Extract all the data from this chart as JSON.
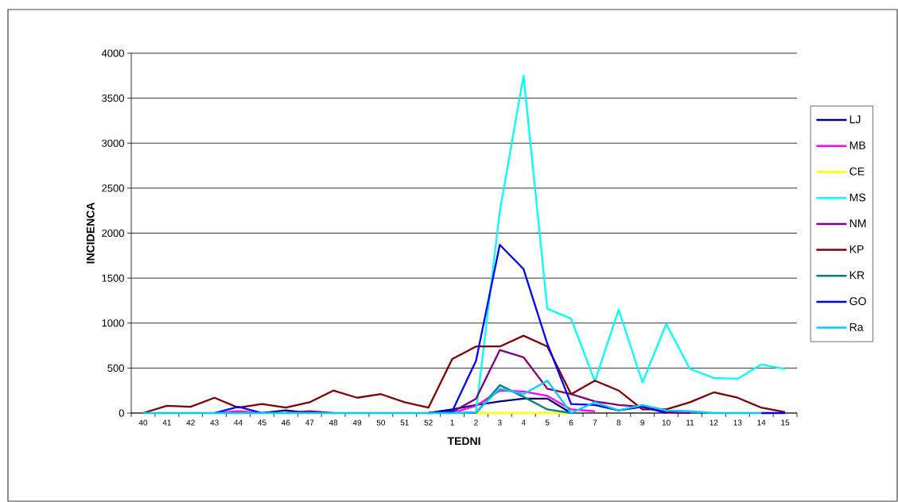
{
  "chart_data": {
    "type": "line",
    "xlabel": "TEDNI",
    "ylabel": "INCIDENCA",
    "categories": [
      "40",
      "41",
      "42",
      "43",
      "44",
      "45",
      "46",
      "47",
      "48",
      "49",
      "50",
      "51",
      "52",
      "1",
      "2",
      "3",
      "4",
      "5",
      "6",
      "7",
      "8",
      "9",
      "10",
      "11",
      "12",
      "13",
      "14",
      "15"
    ],
    "ylim": [
      0,
      4000
    ],
    "yticks": [
      0,
      500,
      1000,
      1500,
      2000,
      2500,
      3000,
      3500,
      4000
    ],
    "grid": "y",
    "legend": "right",
    "series": [
      {
        "name": "LJ",
        "color": "#000080",
        "values": [
          null,
          null,
          null,
          null,
          null,
          0,
          30,
          0,
          null,
          null,
          null,
          null,
          0,
          40,
          90,
          130,
          160,
          160,
          0,
          null,
          null,
          null,
          null,
          null,
          null,
          null,
          null,
          null
        ]
      },
      {
        "name": "MB",
        "color": "#ff00ff",
        "values": [
          null,
          null,
          null,
          0,
          20,
          0,
          null,
          null,
          null,
          null,
          null,
          null,
          null,
          0,
          80,
          250,
          240,
          190,
          40,
          20,
          null,
          null,
          null,
          null,
          null,
          null,
          null,
          null
        ]
      },
      {
        "name": "CE",
        "color": "#ffff00",
        "values": [
          null,
          null,
          null,
          null,
          null,
          null,
          null,
          null,
          null,
          null,
          null,
          null,
          null,
          null,
          0,
          0,
          0,
          0,
          0,
          null,
          null,
          null,
          null,
          null,
          null,
          null,
          null,
          null
        ]
      },
      {
        "name": "MS",
        "color": "#00ffff",
        "values": [
          null,
          null,
          null,
          null,
          null,
          null,
          null,
          null,
          null,
          null,
          null,
          null,
          null,
          0,
          10,
          2240,
          3750,
          1160,
          1050,
          350,
          1150,
          340,
          990,
          490,
          390,
          380,
          540,
          490
        ]
      },
      {
        "name": "NM",
        "color": "#800080",
        "values": [
          null,
          null,
          null,
          null,
          null,
          null,
          0,
          20,
          0,
          null,
          null,
          null,
          0,
          10,
          160,
          700,
          620,
          270,
          210,
          130,
          90,
          70,
          10,
          0,
          null,
          null,
          null,
          null
        ]
      },
      {
        "name": "KP",
        "color": "#800000",
        "values": [
          0,
          80,
          70,
          170,
          60,
          100,
          60,
          120,
          250,
          170,
          210,
          120,
          60,
          600,
          740,
          740,
          860,
          740,
          210,
          360,
          250,
          40,
          40,
          120,
          230,
          170,
          60,
          10
        ]
      },
      {
        "name": "KR",
        "color": "#008080",
        "values": [
          null,
          null,
          null,
          null,
          null,
          null,
          null,
          null,
          null,
          null,
          null,
          null,
          null,
          null,
          0,
          310,
          180,
          40,
          0,
          null,
          null,
          null,
          null,
          null,
          null,
          null,
          null,
          null
        ]
      },
      {
        "name": "GO",
        "color": "#0000ff",
        "values": [
          null,
          null,
          null,
          0,
          70,
          0,
          null,
          null,
          null,
          null,
          null,
          null,
          0,
          20,
          580,
          1870,
          1600,
          770,
          100,
          90,
          30,
          70,
          0,
          null,
          null,
          null,
          0,
          0
        ]
      },
      {
        "name": "Ra",
        "color": "#00ccff",
        "values": [
          0,
          0,
          0,
          0,
          0,
          0,
          0,
          0,
          0,
          0,
          0,
          0,
          0,
          0,
          10,
          270,
          210,
          360,
          0,
          120,
          30,
          90,
          30,
          20,
          0,
          0,
          0,
          null
        ]
      }
    ]
  }
}
